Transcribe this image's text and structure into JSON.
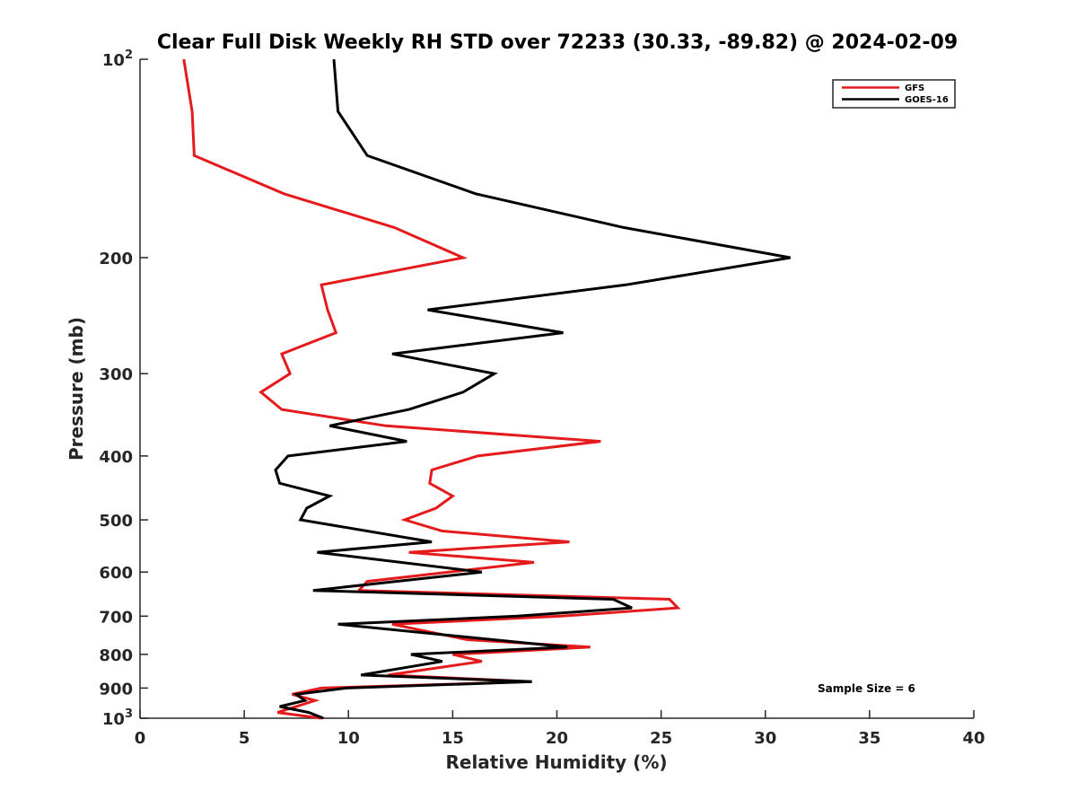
{
  "chart_data": {
    "type": "line",
    "title": "Clear Full Disk Weekly RH STD over 72233 (30.33, -89.82) @ 2024-02-09",
    "xlabel": "Relative Humidity (%)",
    "ylabel": "Pressure (mb)",
    "xlim": [
      0,
      40
    ],
    "ylim": [
      100,
      1000
    ],
    "yscale": "log",
    "yreversed": true,
    "grid": false,
    "x_ticks": [
      0,
      5,
      10,
      15,
      20,
      25,
      30,
      35,
      40
    ],
    "x_tick_labels": [
      "0",
      "5",
      "10",
      "15",
      "20",
      "25",
      "30",
      "35",
      "40"
    ],
    "y_ticks": [
      100,
      200,
      300,
      400,
      500,
      600,
      700,
      800,
      900,
      1000
    ],
    "y_tick_labels": [
      {
        "base": "10",
        "exp": "2"
      },
      {
        "text": "200"
      },
      {
        "text": "300"
      },
      {
        "text": "400"
      },
      {
        "text": "500"
      },
      {
        "text": "600"
      },
      {
        "text": "700"
      },
      {
        "text": "800"
      },
      {
        "text": "900"
      },
      {
        "base": "10",
        "exp": "3"
      }
    ],
    "legend": {
      "position": "top-right",
      "entries": [
        {
          "name": "GFS",
          "color": "#e41a1c"
        },
        {
          "name": "GOES-16",
          "color": "#000000"
        }
      ]
    },
    "annotations": [
      {
        "text": "Sample Size = 6",
        "position": "bottom-right"
      }
    ],
    "series": [
      {
        "name": "GFS",
        "color": "#e41a1c",
        "pressure": [
          100,
          120,
          140,
          160,
          180,
          200,
          220,
          240,
          260,
          280,
          300,
          320,
          340,
          360,
          380,
          400,
          420,
          440,
          460,
          480,
          500,
          520,
          540,
          560,
          580,
          620,
          640,
          660,
          680,
          700,
          720,
          760,
          780,
          800,
          820,
          860,
          880,
          900,
          920,
          940,
          980,
          1000
        ],
        "values": [
          2.1,
          2.5,
          2.6,
          6.9,
          12.2,
          15.5,
          8.7,
          9.0,
          9.4,
          6.8,
          7.2,
          5.8,
          6.8,
          11.8,
          22.1,
          16.2,
          14.0,
          13.9,
          15.0,
          14.2,
          12.7,
          14.5,
          20.6,
          12.9,
          18.9,
          10.9,
          10.5,
          25.4,
          25.8,
          20.2,
          12.1,
          15.7,
          21.6,
          15.0,
          16.4,
          11.9,
          18.8,
          8.7,
          7.3,
          8.4,
          6.6,
          8.7
        ]
      },
      {
        "name": "GOES-16",
        "color": "#000000",
        "pressure": [
          100,
          120,
          140,
          160,
          180,
          200,
          220,
          240,
          260,
          280,
          300,
          320,
          340,
          360,
          380,
          400,
          420,
          440,
          460,
          480,
          500,
          540,
          560,
          600,
          640,
          660,
          680,
          700,
          720,
          780,
          800,
          820,
          860,
          880,
          900,
          920,
          940,
          960,
          980,
          1000
        ],
        "values": [
          9.3,
          9.5,
          10.9,
          16.1,
          23.2,
          31.2,
          23.3,
          13.8,
          20.3,
          12.1,
          17.0,
          15.5,
          12.9,
          9.1,
          12.8,
          7.1,
          6.5,
          6.7,
          9.1,
          8.0,
          7.7,
          14.0,
          8.5,
          16.4,
          8.3,
          22.7,
          23.6,
          18.1,
          9.5,
          20.5,
          13.0,
          14.5,
          10.6,
          18.8,
          9.9,
          7.5,
          7.9,
          6.7,
          8.1,
          8.8
        ]
      }
    ]
  }
}
